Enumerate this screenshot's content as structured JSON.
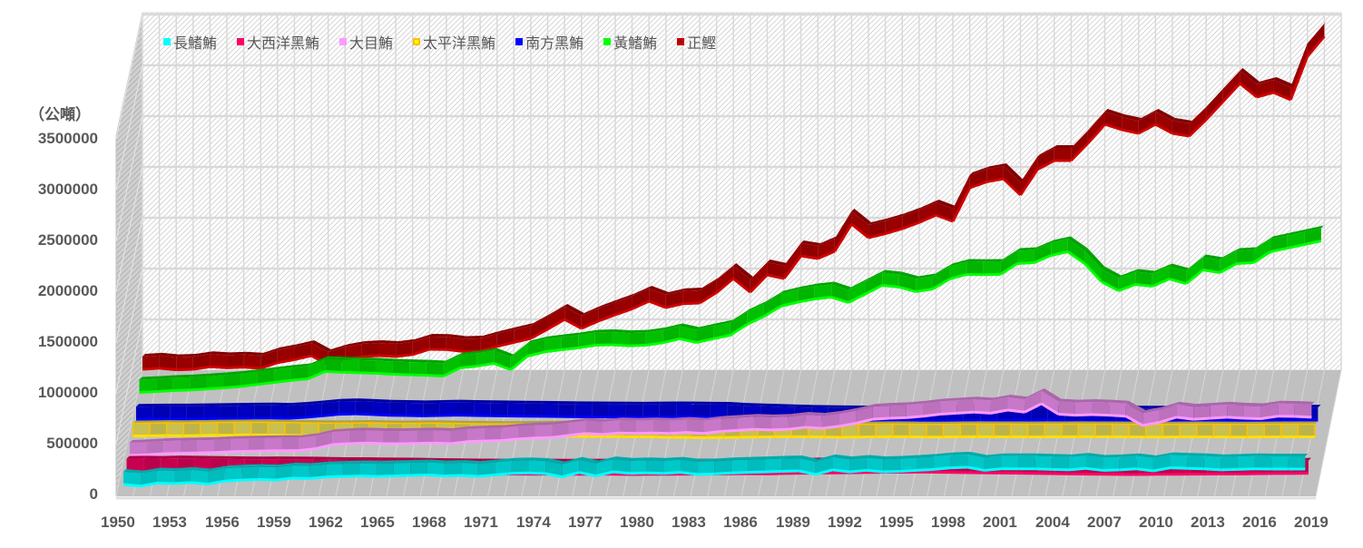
{
  "chart": {
    "unit_label": "（公噸）",
    "y_ticks": [
      "3500000",
      "3000000",
      "2500000",
      "2000000",
      "1500000",
      "1000000",
      "500000",
      "0"
    ],
    "x_ticks": [
      "1950",
      "1953",
      "1956",
      "1959",
      "1962",
      "1965",
      "1968",
      "1971",
      "1974",
      "1977",
      "1980",
      "1983",
      "1986",
      "1989",
      "1992",
      "1995",
      "1998",
      "2001",
      "2004",
      "2007",
      "2010",
      "2013",
      "2016",
      "2019"
    ],
    "legend": [
      {
        "label": "長鰭鮪",
        "color": "#00FFFF"
      },
      {
        "label": "大西洋黑鮪",
        "color": "#FF0066"
      },
      {
        "label": "大目鮪",
        "color": "#FF99FF"
      },
      {
        "label": "太平洋黑鮪",
        "color": "#FFFF00",
        "border": "#FFC000"
      },
      {
        "label": "南方黑鮪",
        "color": "#0000FF"
      },
      {
        "label": "黃鰭鮪",
        "color": "#00FF00"
      },
      {
        "label": "正鰹",
        "color": "#C00000"
      }
    ]
  },
  "chart_data": {
    "type": "line",
    "style": "3d-line",
    "title": "",
    "xlabel": "",
    "ylabel": "（公噸）",
    "ylim": [
      0,
      3500000
    ],
    "grid": true,
    "legend_position": "top",
    "x": [
      1950,
      1951,
      1952,
      1953,
      1954,
      1955,
      1956,
      1957,
      1958,
      1959,
      1960,
      1961,
      1962,
      1963,
      1964,
      1965,
      1966,
      1967,
      1968,
      1969,
      1970,
      1971,
      1972,
      1973,
      1974,
      1975,
      1976,
      1977,
      1978,
      1979,
      1980,
      1981,
      1982,
      1983,
      1984,
      1985,
      1986,
      1987,
      1988,
      1989,
      1990,
      1991,
      1992,
      1993,
      1994,
      1995,
      1996,
      1997,
      1998,
      1999,
      2000,
      2001,
      2002,
      2003,
      2004,
      2005,
      2006,
      2007,
      2008,
      2009,
      2010,
      2011,
      2012,
      2013,
      2014,
      2015,
      2016,
      2017,
      2018,
      2019,
      2020
    ],
    "series": [
      {
        "name": "長鰭鮪",
        "color": "#00FFFF",
        "values": [
          116000,
          100000,
          130000,
          125000,
          135000,
          120000,
          150000,
          160000,
          165000,
          160000,
          179000,
          175000,
          190000,
          195000,
          200000,
          195000,
          200000,
          205000,
          210000,
          200000,
          205000,
          195000,
          210000,
          225000,
          230000,
          223000,
          190000,
          235000,
          200000,
          240000,
          225000,
          230000,
          225000,
          235000,
          215000,
          220000,
          230000,
          235000,
          240000,
          245000,
          250000,
          215000,
          260000,
          240000,
          255000,
          240000,
          245000,
          255000,
          265000,
          280000,
          286000,
          255000,
          270000,
          270000,
          270000,
          265000,
          260000,
          275000,
          255000,
          260000,
          270000,
          250000,
          280000,
          275000,
          270000,
          260000,
          265000,
          270000,
          268000,
          268000,
          268000
        ]
      },
      {
        "name": "大西洋黑鮪",
        "color": "#FF0066",
        "values": [
          70000,
          72000,
          70000,
          75000,
          72000,
          70000,
          68000,
          66000,
          65000,
          66000,
          65000,
          64000,
          60000,
          58000,
          58000,
          56000,
          55000,
          54000,
          50000,
          48000,
          46000,
          45000,
          44000,
          45000,
          44000,
          43000,
          42000,
          42000,
          43000,
          42000,
          40000,
          42000,
          42000,
          44000,
          44000,
          45000,
          47000,
          48000,
          46000,
          50000,
          52000,
          55000,
          56000,
          58000,
          60000,
          62000,
          63000,
          64000,
          62000,
          60000,
          58000,
          56000,
          55000,
          52000,
          50000,
          48000,
          46000,
          44000,
          42000,
          40000,
          40000,
          42000,
          42000,
          44000,
          45000,
          46000,
          46000,
          48000,
          50000,
          50000,
          52000
        ]
      },
      {
        "name": "大目鮪",
        "color": "#FF99FF",
        "values": [
          54000,
          60000,
          70000,
          75000,
          78000,
          82000,
          90000,
          95000,
          98000,
          100000,
          102000,
          120000,
          160000,
          170000,
          175000,
          170000,
          168000,
          172000,
          175000,
          170000,
          190000,
          195000,
          200000,
          215000,
          225000,
          230000,
          250000,
          270000,
          260000,
          275000,
          270000,
          275000,
          270000,
          280000,
          270000,
          290000,
          300000,
          310000,
          305000,
          310000,
          330000,
          320000,
          340000,
          370000,
          410000,
          420000,
          425000,
          440000,
          460000,
          470000,
          480000,
          470000,
          500000,
          480000,
          563000,
          460000,
          450000,
          455000,
          450000,
          440000,
          348000,
          380000,
          430000,
          410000,
          420000,
          430000,
          420000,
          415000,
          440000,
          438000,
          430000
        ]
      },
      {
        "name": "太平洋黑鮪",
        "color": "#FFFF00",
        "values": [
          70000,
          72000,
          75000,
          73000,
          76000,
          78000,
          80000,
          82000,
          80000,
          78000,
          76000,
          74000,
          72000,
          74000,
          76000,
          73000,
          70000,
          72000,
          74000,
          70000,
          68000,
          66000,
          65000,
          66000,
          68000,
          70000,
          68000,
          66000,
          65000,
          64000,
          62000,
          60000,
          58000,
          56000,
          55000,
          56000,
          58000,
          60000,
          62000,
          64000,
          62000,
          60000,
          58000,
          60000,
          62000,
          64000,
          62000,
          60000,
          60000,
          62000,
          64000,
          63000,
          62000,
          61000,
          62000,
          63000,
          64000,
          63000,
          62000,
          61000,
          60000,
          60000,
          61000,
          62000,
          61000,
          60000,
          60000,
          61000,
          62000,
          62000,
          62000
        ]
      },
      {
        "name": "南方黑鮪",
        "color": "#0000FF",
        "values": [
          60000,
          62000,
          64000,
          64000,
          66000,
          68000,
          70000,
          72000,
          74000,
          70000,
          80000,
          95000,
          110000,
          115000,
          108000,
          100000,
          98000,
          95000,
          98000,
          102000,
          98000,
          96000,
          94000,
          92000,
          90000,
          88000,
          86000,
          85000,
          84000,
          83000,
          82000,
          84000,
          85000,
          84000,
          82000,
          80000,
          70000,
          65000,
          60000,
          55000,
          50000,
          48000,
          46000,
          45000,
          46000,
          46000,
          47000,
          48000,
          49000,
          50000,
          52000,
          50000,
          52000,
          50000,
          55000,
          48000,
          46000,
          45000,
          44000,
          43000,
          42000,
          42000,
          44000,
          45000,
          46000,
          47000,
          48000,
          48000,
          50000,
          52000,
          53000
        ]
      },
      {
        "name": "黃鰭鮪",
        "color": "#00FF00",
        "values": [
          152000,
          160000,
          170000,
          175000,
          185000,
          196000,
          210000,
          230000,
          250000,
          270000,
          286000,
          357000,
          350000,
          345000,
          340000,
          330000,
          325000,
          320000,
          312000,
          393000,
          410000,
          437000,
          375000,
          509000,
          550000,
          571000,
          590000,
          616000,
          620000,
          610000,
          616000,
          640000,
          679000,
          643000,
          680000,
          714000,
          821000,
          900000,
          1000000,
          1040000,
          1071000,
          1089000,
          1036000,
          1120000,
          1205000,
          1188000,
          1143000,
          1170000,
          1268000,
          1313000,
          1310000,
          1313000,
          1420000,
          1429000,
          1500000,
          1536000,
          1420000,
          1241000,
          1152000,
          1214000,
          1196000,
          1268000,
          1223000,
          1357000,
          1330000,
          1420000,
          1429000,
          1536000,
          1571000,
          1607000,
          1643000
        ]
      },
      {
        "name": "正鰹",
        "color": "#C00000",
        "values": [
          205000,
          215000,
          200000,
          205000,
          230000,
          220000,
          225000,
          215000,
          270000,
          300000,
          339000,
          250000,
          300000,
          330000,
          339000,
          330000,
          350000,
          402000,
          400000,
          380000,
          384000,
          430000,
          470000,
          509000,
          600000,
          696000,
          607000,
          680000,
          741000,
          800000,
          875000,
          812000,
          850000,
          857000,
          960000,
          1098000,
          964000,
          1134000,
          1098000,
          1321000,
          1295000,
          1366000,
          1634000,
          1500000,
          1540000,
          1589000,
          1650000,
          1723000,
          1661000,
          1991000,
          2050000,
          2080000,
          1920000,
          2170000,
          2259000,
          2259000,
          2430000,
          2616000,
          2563000,
          2527000,
          2616000,
          2527000,
          2500000,
          2661000,
          2840000,
          3018000,
          2884000,
          2929000,
          2857000,
          3286000,
          3482000
        ]
      }
    ]
  }
}
